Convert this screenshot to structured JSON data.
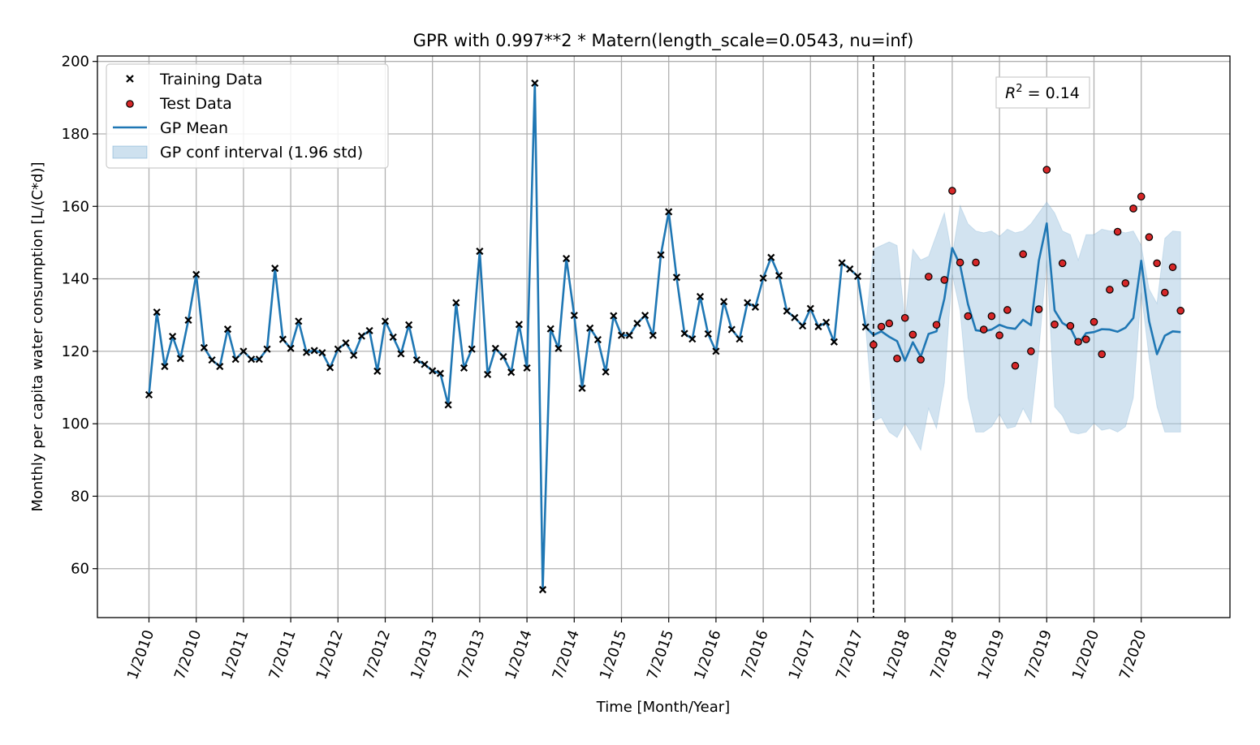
{
  "chart_data": {
    "type": "line",
    "title": "GPR with 0.997**2 * Matern(length_scale=0.0543, nu=inf)",
    "xlabel": "Time [Month/Year]",
    "ylabel": "Monthly per capita water consumption [L/(C*d)]",
    "ylim": [
      46.5,
      201.5
    ],
    "y_ticks": [
      60,
      80,
      100,
      120,
      140,
      160,
      180,
      200
    ],
    "x_tick_labels": [
      "1/2010",
      "7/2010",
      "1/2011",
      "7/2011",
      "1/2012",
      "7/2012",
      "1/2013",
      "7/2013",
      "1/2014",
      "7/2014",
      "1/2015",
      "7/2015",
      "1/2016",
      "7/2016",
      "1/2017",
      "7/2017",
      "1/2018",
      "7/2018",
      "1/2019",
      "7/2019",
      "1/2020",
      "7/2020"
    ],
    "x_tick_months": [
      0,
      6,
      12,
      18,
      24,
      30,
      36,
      42,
      48,
      54,
      60,
      66,
      72,
      78,
      84,
      90,
      96,
      102,
      108,
      114,
      120,
      126
    ],
    "x_start": "1/2010",
    "split_month": 92,
    "annotation": "R^2 = 0.14",
    "grid": true,
    "legend_position": "top-left",
    "legend": [
      {
        "label": "Training Data",
        "marker": "x"
      },
      {
        "label": "Test Data",
        "marker": "red-dot"
      },
      {
        "label": "GP Mean",
        "marker": "line"
      },
      {
        "label": "GP conf interval (1.96 std)",
        "marker": "patch"
      }
    ],
    "colors": {
      "mean": "#1f77b4",
      "band": "#a6c8e2",
      "test": "#d62728",
      "train": "#000000"
    },
    "training": [
      108.0,
      130.8,
      115.8,
      124.1,
      118.0,
      128.6,
      141.2,
      121.0,
      117.6,
      115.8,
      126.1,
      117.8,
      120.0,
      117.8,
      117.8,
      120.6,
      142.9,
      123.3,
      120.8,
      128.3,
      119.7,
      120.2,
      119.6,
      115.5,
      120.6,
      122.3,
      118.9,
      124.2,
      125.7,
      114.5,
      128.3,
      123.9,
      119.3,
      127.3,
      117.6,
      116.4,
      114.6,
      113.9,
      105.2,
      133.4,
      115.4,
      120.6,
      147.6,
      113.6,
      120.8,
      118.5,
      114.2,
      127.4,
      115.4,
      194.0,
      54.2,
      126.2,
      120.8,
      145.6,
      129.9,
      109.8,
      126.4,
      123.2,
      114.3,
      129.8,
      124.4,
      124.4,
      127.7,
      129.9,
      124.4,
      146.6,
      158.5,
      140.4,
      124.9,
      123.4,
      135.1,
      124.8,
      120.0,
      133.7,
      126.0,
      123.4,
      133.4,
      132.2,
      140.2,
      145.9,
      140.9,
      131.1,
      129.3,
      127.0,
      131.8,
      126.8,
      128.0,
      122.6,
      144.4,
      142.7,
      140.7,
      126.7
    ],
    "test": [
      121.8,
      126.8,
      127.7,
      118.0,
      129.2,
      124.6,
      117.7,
      140.6,
      127.3,
      139.7,
      164.3,
      144.5,
      129.7,
      144.5,
      126.0,
      129.7,
      124.4,
      131.4,
      116.0,
      146.8,
      120.0,
      131.6,
      170.1,
      127.4,
      144.3,
      127.0,
      122.6,
      123.3,
      128.1,
      119.2,
      137.0,
      153.0,
      138.8,
      159.4,
      162.7,
      151.5,
      144.3,
      136.2,
      143.2,
      131.2
    ],
    "mean": [
      126.7,
      124.5,
      125.5,
      124.0,
      122.8,
      117.4,
      122.5,
      118.5,
      124.8,
      125.5,
      134.5,
      148.5,
      143.8,
      133.0,
      125.8,
      125.5,
      126.0,
      127.3,
      126.5,
      126.2,
      128.7,
      127.2,
      145.0,
      155.3,
      131.3,
      127.8,
      126.5,
      122.0,
      125.0,
      125.3,
      126.1,
      126.0,
      125.4,
      126.5,
      129.2,
      145.0,
      128.3,
      119.2,
      124.3,
      125.5,
      125.3
    ],
    "upper": [
      126.7,
      148.2,
      149.2,
      150.2,
      149.2,
      128.2,
      148.2,
      145.2,
      146.2,
      152.2,
      158.2,
      146.2,
      160.2,
      155.2,
      153.2,
      152.7,
      153.2,
      151.7,
      153.7,
      152.7,
      153.2,
      155.2,
      158.2,
      161.2,
      158.2,
      153.2,
      152.2,
      145.2,
      152.2,
      152.2,
      153.7,
      153.2,
      153.2,
      152.7,
      153.2,
      149.2,
      137.2,
      133.2,
      151.2,
      153.2,
      153.0
    ],
    "lower": [
      126.7,
      100.7,
      101.7,
      97.7,
      96.2,
      100.2,
      96.7,
      92.7,
      104.2,
      98.7,
      111.2,
      141.2,
      131.2,
      107.2,
      97.7,
      97.7,
      99.2,
      102.7,
      98.7,
      99.2,
      104.2,
      100.2,
      120.2,
      145.2,
      104.7,
      102.2,
      97.7,
      97.2,
      97.7,
      100.2,
      98.2,
      98.7,
      97.7,
      99.2,
      107.2,
      136.2,
      118.2,
      104.7,
      97.7,
      97.7,
      97.7
    ]
  }
}
